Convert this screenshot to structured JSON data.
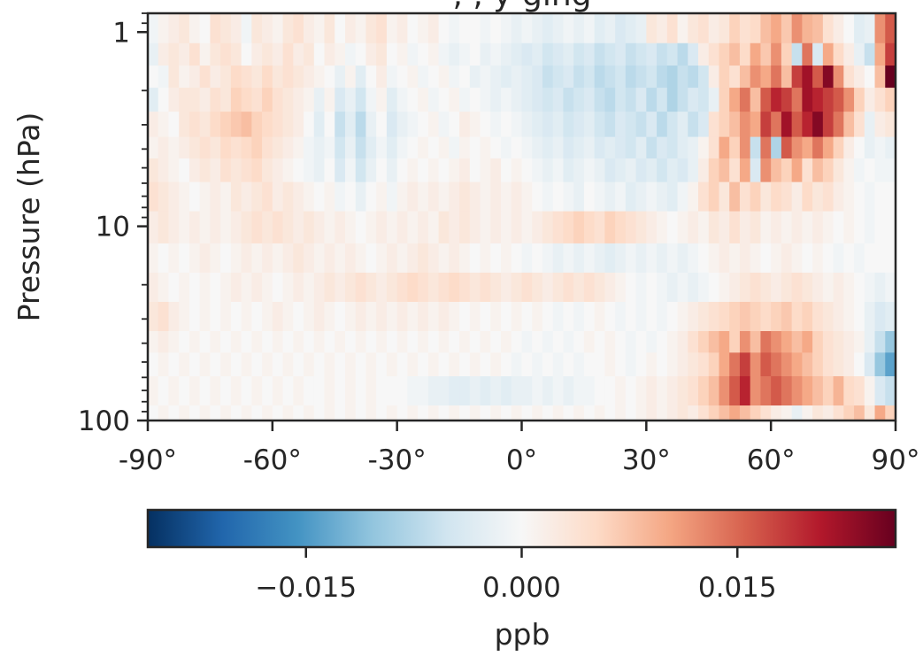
{
  "chart_data": {
    "type": "heatmap",
    "title": ", , y ging",
    "xlabel": "",
    "ylabel": "Pressure (hPa)",
    "xlim": [
      -90,
      90
    ],
    "ylim": [
      100,
      0.8
    ],
    "yscale": "log",
    "x_ticks": [
      -90,
      -60,
      -30,
      0,
      30,
      60,
      90
    ],
    "x_tick_labels": [
      "-90°",
      "-60°",
      "-30°",
      "0°",
      "30°",
      "60°",
      "90°"
    ],
    "y_ticks": [
      1,
      10,
      100
    ],
    "y_tick_labels": [
      "1",
      "10",
      "100"
    ],
    "colorbar": {
      "label": "ppb",
      "cmap": "RdBu_r",
      "vmin": -0.026,
      "vmax": 0.026,
      "ticks": [
        -0.015,
        0.0,
        0.015
      ],
      "tick_labels": [
        "−0.015",
        "0.000",
        "0.015"
      ]
    },
    "x": [
      -88.75,
      -86.25,
      -83.75,
      -81.25,
      -78.75,
      -76.25,
      -73.75,
      -71.25,
      -68.75,
      -66.25,
      -63.75,
      -61.25,
      -58.75,
      -56.25,
      -53.75,
      -51.25,
      -48.75,
      -46.25,
      -43.75,
      -41.25,
      -38.75,
      -36.25,
      -33.75,
      -31.25,
      -28.75,
      -26.25,
      -23.75,
      -21.25,
      -18.75,
      -16.25,
      -13.75,
      -11.25,
      -8.75,
      -6.25,
      -3.75,
      -1.25,
      1.25,
      3.75,
      6.25,
      8.75,
      11.25,
      13.75,
      16.25,
      18.75,
      21.25,
      23.75,
      26.25,
      28.75,
      31.25,
      33.75,
      36.25,
      38.75,
      41.25,
      43.75,
      46.25,
      48.75,
      51.25,
      53.75,
      56.25,
      58.75,
      61.25,
      63.75,
      66.25,
      68.75,
      71.25,
      73.75,
      76.25,
      78.75,
      81.25,
      83.75,
      86.25,
      88.75
    ],
    "y": [
      1,
      1.3,
      1.7,
      2.2,
      3,
      4,
      5,
      7,
      10,
      15,
      20,
      30,
      40,
      50,
      70,
      100
    ],
    "z": [
      [
        -0.001,
        0.001,
        0.002,
        0.003,
        0.001,
        0.0,
        0.004,
        0.003,
        0.002,
        -0.001,
        0.003,
        0.002,
        0.001,
        0.003,
        0.004,
        0.002,
        0.001,
        0.003,
        0.0,
        0.002,
        0.001,
        0.003,
        0.004,
        0.001,
        0.002,
        0.0,
        0.001,
        0.002,
        0.0,
        -0.001,
        0.0,
        0.0,
        -0.001,
        0.0,
        -0.001,
        -0.002,
        -0.001,
        -0.002,
        -0.003,
        -0.002,
        -0.001,
        -0.002,
        -0.001,
        -0.003,
        -0.002,
        -0.004,
        -0.003,
        -0.002,
        0.003,
        0.002,
        0.004,
        0.001,
        0.003,
        0.004,
        0.002,
        0.003,
        0.006,
        0.004,
        0.005,
        0.008,
        0.01,
        0.007,
        0.012,
        0.009,
        0.008,
        0.004,
        0.002,
        0.0,
        -0.003,
        -0.002,
        0.012,
        0.016
      ],
      [
        -0.002,
        0.002,
        0.003,
        0.002,
        0.004,
        0.001,
        0.003,
        0.004,
        0.003,
        0.0,
        0.002,
        0.003,
        0.002,
        0.004,
        0.002,
        0.003,
        0.0,
        0.002,
        0.001,
        -0.001,
        0.0,
        0.002,
        0.003,
        0.0,
        0.001,
        -0.001,
        0.0,
        0.001,
        -0.001,
        -0.002,
        -0.001,
        0.0,
        -0.002,
        -0.001,
        -0.002,
        -0.003,
        -0.004,
        -0.003,
        -0.005,
        -0.004,
        -0.003,
        -0.005,
        -0.004,
        -0.006,
        -0.005,
        -0.004,
        -0.006,
        -0.005,
        -0.004,
        -0.006,
        -0.005,
        -0.007,
        -0.004,
        0.002,
        0.004,
        0.006,
        0.008,
        0.005,
        0.01,
        0.007,
        0.012,
        0.006,
        -0.006,
        0.014,
        -0.004,
        0.01,
        0.005,
        0.002,
        -0.002,
        -0.006,
        0.01,
        0.018
      ],
      [
        0.0,
        -0.001,
        0.003,
        0.001,
        0.002,
        0.004,
        0.002,
        0.003,
        0.005,
        0.004,
        0.003,
        0.005,
        0.003,
        0.004,
        0.003,
        0.002,
        0.001,
        0.0,
        -0.002,
        0.001,
        -0.003,
        0.0,
        0.002,
        -0.001,
        0.0,
        0.001,
        -0.001,
        0.0,
        0.001,
        -0.001,
        0.0,
        -0.002,
        -0.001,
        -0.002,
        -0.003,
        -0.002,
        -0.003,
        -0.004,
        -0.006,
        -0.005,
        -0.004,
        -0.006,
        -0.005,
        -0.007,
        -0.006,
        -0.005,
        -0.007,
        -0.006,
        -0.005,
        -0.007,
        -0.008,
        -0.006,
        -0.007,
        -0.005,
        0.002,
        0.006,
        0.004,
        0.008,
        0.012,
        0.01,
        0.014,
        0.008,
        0.018,
        0.022,
        0.016,
        0.024,
        0.012,
        0.004,
        0.002,
        0.0,
        0.008,
        0.026
      ],
      [
        -0.003,
        0.0,
        0.002,
        0.003,
        0.003,
        0.002,
        0.004,
        0.003,
        0.006,
        0.005,
        0.004,
        0.006,
        0.004,
        0.003,
        0.002,
        0.001,
        -0.002,
        0.001,
        -0.004,
        -0.002,
        -0.005,
        -0.001,
        0.001,
        -0.003,
        -0.001,
        0.0,
        0.001,
        -0.001,
        0.0,
        0.001,
        -0.001,
        0.0,
        -0.001,
        -0.002,
        -0.001,
        -0.002,
        -0.003,
        -0.004,
        -0.005,
        -0.004,
        -0.006,
        -0.005,
        -0.004,
        -0.006,
        -0.007,
        -0.005,
        -0.006,
        -0.004,
        -0.007,
        -0.005,
        -0.008,
        -0.006,
        -0.004,
        -0.005,
        -0.002,
        0.006,
        0.01,
        0.014,
        0.008,
        0.016,
        0.02,
        0.018,
        0.014,
        0.022,
        0.02,
        0.018,
        0.016,
        0.012,
        0.006,
        0.002,
        0.004,
        0.006
      ],
      [
        0.002,
        0.001,
        0.0,
        0.003,
        0.004,
        0.003,
        0.005,
        0.006,
        0.007,
        0.008,
        0.006,
        0.005,
        0.004,
        0.003,
        0.002,
        0.0,
        -0.003,
        0.0,
        -0.006,
        -0.003,
        -0.007,
        -0.002,
        0.0,
        -0.004,
        -0.002,
        -0.001,
        0.0,
        0.001,
        -0.001,
        0.0,
        0.002,
        0.001,
        0.0,
        -0.001,
        0.0,
        -0.001,
        -0.002,
        -0.003,
        -0.004,
        -0.003,
        -0.005,
        -0.004,
        -0.003,
        -0.005,
        -0.006,
        -0.004,
        -0.005,
        -0.006,
        -0.004,
        -0.007,
        -0.005,
        -0.003,
        -0.006,
        -0.004,
        0.004,
        0.006,
        0.008,
        0.012,
        0.01,
        0.018,
        0.014,
        0.022,
        0.016,
        0.02,
        0.024,
        0.018,
        0.014,
        0.008,
        0.004,
        -0.002,
        0.002,
        0.003
      ],
      [
        0.001,
        0.002,
        0.001,
        0.002,
        0.003,
        0.004,
        0.003,
        0.005,
        0.004,
        0.005,
        0.006,
        0.004,
        0.003,
        0.002,
        0.001,
        -0.001,
        -0.002,
        -0.001,
        -0.005,
        -0.002,
        -0.006,
        -0.003,
        -0.001,
        -0.003,
        -0.001,
        0.0,
        0.001,
        0.0,
        0.001,
        -0.001,
        0.001,
        0.0,
        0.001,
        0.0,
        -0.001,
        0.0,
        -0.001,
        -0.002,
        -0.003,
        -0.002,
        -0.004,
        -0.003,
        -0.002,
        -0.004,
        -0.003,
        -0.004,
        -0.005,
        -0.003,
        -0.006,
        -0.004,
        -0.005,
        -0.003,
        -0.002,
        0.001,
        0.004,
        0.01,
        0.006,
        0.012,
        -0.006,
        0.014,
        -0.008,
        0.016,
        0.012,
        0.01,
        0.014,
        0.01,
        0.006,
        0.002,
        0.0,
        -0.002,
        -0.001,
        -0.002
      ],
      [
        0.003,
        0.002,
        0.001,
        0.0,
        0.002,
        0.003,
        0.002,
        0.004,
        0.003,
        0.004,
        0.005,
        0.003,
        0.002,
        0.001,
        0.0,
        -0.001,
        -0.002,
        0.0,
        -0.004,
        -0.001,
        -0.005,
        -0.002,
        0.0,
        -0.002,
        0.0,
        0.001,
        0.0,
        0.001,
        0.0,
        0.001,
        0.002,
        0.0,
        0.001,
        0.002,
        0.0,
        0.001,
        0.0,
        -0.001,
        -0.002,
        -0.001,
        -0.003,
        -0.002,
        -0.001,
        -0.002,
        -0.004,
        -0.003,
        -0.002,
        -0.004,
        -0.003,
        -0.005,
        -0.003,
        -0.004,
        -0.002,
        0.002,
        0.006,
        0.008,
        0.004,
        0.01,
        -0.004,
        0.012,
        0.008,
        0.006,
        0.01,
        0.004,
        0.008,
        0.006,
        0.003,
        0.001,
        -0.001,
        0.0,
        -0.001,
        -0.001
      ],
      [
        0.004,
        0.003,
        0.002,
        0.001,
        0.0,
        0.001,
        0.002,
        0.001,
        0.003,
        0.002,
        0.003,
        0.004,
        0.002,
        0.003,
        0.002,
        0.001,
        0.0,
        0.001,
        -0.001,
        0.0,
        -0.002,
        0.0,
        0.001,
        -0.001,
        0.001,
        0.002,
        0.001,
        0.002,
        0.001,
        0.002,
        0.003,
        0.002,
        0.001,
        0.002,
        0.001,
        0.002,
        0.001,
        0.0,
        -0.001,
        0.0,
        -0.001,
        -0.002,
        0.0,
        -0.001,
        -0.002,
        -0.001,
        -0.003,
        -0.002,
        -0.001,
        -0.002,
        -0.003,
        -0.001,
        0.001,
        0.004,
        0.006,
        0.003,
        0.008,
        0.004,
        0.006,
        0.003,
        0.005,
        0.004,
        0.002,
        0.005,
        0.003,
        0.004,
        0.002,
        0.001,
        0.0,
        -0.001,
        0.0,
        0.0
      ],
      [
        0.002,
        0.003,
        0.002,
        0.001,
        0.002,
        0.001,
        0.002,
        0.001,
        0.002,
        0.003,
        0.004,
        0.003,
        0.004,
        0.003,
        0.002,
        0.003,
        0.002,
        0.001,
        0.002,
        0.001,
        0.0,
        0.001,
        0.002,
        0.001,
        0.002,
        0.001,
        0.002,
        0.001,
        0.003,
        0.002,
        0.003,
        0.002,
        0.001,
        0.002,
        0.001,
        0.002,
        0.001,
        0.002,
        0.003,
        0.004,
        0.005,
        0.006,
        0.005,
        0.004,
        0.006,
        0.005,
        0.004,
        0.003,
        0.002,
        0.001,
        0.0,
        0.001,
        0.002,
        0.001,
        0.003,
        0.002,
        0.004,
        0.002,
        0.003,
        0.001,
        0.002,
        0.001,
        0.002,
        0.001,
        0.002,
        0.001,
        0.0,
        0.001,
        0.0,
        -0.001,
        0.0,
        0.0
      ],
      [
        0.001,
        0.0,
        0.001,
        0.0,
        0.001,
        0.002,
        0.001,
        0.0,
        0.001,
        0.002,
        0.001,
        0.002,
        0.001,
        0.002,
        0.003,
        0.002,
        0.001,
        0.002,
        0.001,
        0.002,
        0.001,
        0.0,
        0.001,
        0.002,
        0.001,
        0.002,
        0.003,
        0.002,
        0.001,
        0.002,
        0.001,
        0.0,
        0.001,
        0.0,
        0.001,
        0.0,
        -0.001,
        0.0,
        -0.001,
        -0.002,
        -0.001,
        -0.002,
        -0.001,
        -0.002,
        -0.003,
        -0.002,
        -0.001,
        -0.002,
        -0.001,
        -0.002,
        -0.001,
        -0.002,
        -0.001,
        0.0,
        0.001,
        0.002,
        0.001,
        0.002,
        0.001,
        0.0,
        0.001,
        0.002,
        0.001,
        0.0,
        0.001,
        0.0,
        -0.001,
        0.0,
        -0.001,
        0.0,
        0.0,
        0.0
      ],
      [
        0.002,
        0.001,
        0.0,
        0.001,
        0.0,
        0.001,
        0.0,
        0.001,
        0.002,
        0.001,
        0.002,
        0.001,
        0.0,
        0.001,
        0.002,
        0.001,
        0.002,
        0.003,
        0.002,
        0.003,
        0.004,
        0.003,
        0.002,
        0.003,
        0.004,
        0.005,
        0.004,
        0.003,
        0.004,
        0.005,
        0.004,
        0.003,
        0.004,
        0.003,
        0.002,
        0.003,
        0.004,
        0.003,
        0.002,
        0.003,
        0.004,
        0.003,
        0.004,
        0.003,
        0.002,
        0.001,
        0.0,
        -0.001,
        0.0,
        -0.001,
        -0.002,
        -0.001,
        -0.002,
        -0.001,
        0.0,
        0.001,
        0.002,
        0.003,
        0.004,
        0.003,
        0.002,
        0.003,
        0.004,
        0.003,
        0.002,
        0.001,
        0.002,
        0.001,
        0.0,
        -0.001,
        -0.002,
        -0.001
      ],
      [
        0.003,
        0.004,
        0.002,
        0.001,
        0.0,
        0.001,
        0.0,
        0.001,
        0.0,
        0.001,
        0.0,
        0.001,
        0.002,
        0.001,
        0.0,
        0.001,
        0.002,
        0.001,
        0.0,
        0.001,
        0.002,
        0.001,
        0.002,
        0.001,
        0.002,
        0.001,
        0.002,
        0.001,
        0.002,
        0.001,
        0.0,
        0.001,
        0.0,
        0.001,
        0.0,
        0.001,
        0.0,
        0.001,
        0.0,
        -0.001,
        0.0,
        -0.001,
        0.0,
        0.001,
        0.0,
        -0.001,
        0.0,
        -0.001,
        0.0,
        -0.001,
        0.0,
        0.001,
        0.002,
        0.003,
        0.004,
        0.005,
        0.006,
        0.007,
        0.006,
        0.005,
        0.006,
        0.007,
        0.005,
        0.006,
        0.004,
        0.003,
        0.002,
        0.001,
        0.0,
        -0.002,
        -0.004,
        -0.003
      ],
      [
        0.001,
        0.002,
        0.001,
        0.0,
        0.001,
        0.0,
        0.001,
        0.0,
        0.001,
        0.0,
        0.001,
        0.0,
        0.001,
        0.0,
        0.001,
        0.0,
        0.001,
        0.0,
        0.001,
        0.0,
        0.001,
        0.0,
        0.001,
        0.0,
        0.001,
        0.0,
        0.001,
        0.0,
        0.001,
        0.0,
        0.001,
        0.0,
        0.001,
        0.0,
        0.001,
        0.0,
        -0.001,
        0.0,
        -0.001,
        0.0,
        -0.001,
        0.0,
        0.001,
        0.0,
        0.001,
        0.0,
        -0.001,
        0.0,
        -0.001,
        0.0,
        0.001,
        0.002,
        0.004,
        0.006,
        0.008,
        0.01,
        0.006,
        0.012,
        0.008,
        0.014,
        0.012,
        0.01,
        0.008,
        0.01,
        0.006,
        0.004,
        0.003,
        0.002,
        0.001,
        -0.002,
        -0.006,
        -0.01
      ],
      [
        0.0,
        0.001,
        0.0,
        0.001,
        0.0,
        0.001,
        0.0,
        0.001,
        0.0,
        0.001,
        0.0,
        0.001,
        0.0,
        0.001,
        0.0,
        0.001,
        0.0,
        0.001,
        0.0,
        0.001,
        0.0,
        0.001,
        0.0,
        0.001,
        0.0,
        0.001,
        0.0,
        0.001,
        0.0,
        0.001,
        0.0,
        0.001,
        0.0,
        0.001,
        0.0,
        -0.001,
        0.0,
        -0.001,
        0.0,
        -0.001,
        0.0,
        -0.001,
        0.0,
        0.0,
        0.001,
        0.0,
        -0.001,
        0.0,
        0.001,
        0.0,
        0.001,
        0.002,
        0.003,
        0.004,
        0.006,
        0.01,
        0.014,
        0.018,
        0.012,
        0.016,
        0.014,
        0.012,
        0.01,
        0.008,
        0.006,
        0.004,
        0.003,
        0.002,
        0.0,
        -0.004,
        -0.01,
        -0.014
      ],
      [
        0.001,
        0.0,
        0.001,
        0.0,
        0.001,
        0.0,
        0.001,
        0.0,
        0.001,
        0.0,
        0.001,
        0.0,
        0.001,
        0.0,
        0.001,
        0.0,
        0.0,
        0.001,
        0.0,
        0.001,
        0.0,
        0.001,
        0.0,
        0.0,
        0.0,
        -0.001,
        -0.001,
        -0.002,
        -0.002,
        -0.003,
        -0.003,
        -0.002,
        -0.003,
        -0.002,
        -0.003,
        -0.002,
        -0.002,
        -0.001,
        -0.002,
        -0.001,
        -0.002,
        -0.001,
        -0.001,
        0.0,
        0.0,
        0.001,
        0.0,
        0.001,
        0.002,
        0.001,
        0.002,
        0.003,
        0.004,
        0.006,
        0.008,
        0.012,
        0.016,
        0.02,
        0.012,
        0.014,
        0.016,
        0.014,
        0.012,
        0.01,
        0.008,
        0.006,
        0.009,
        0.005,
        0.004,
        0.001,
        -0.004,
        -0.006
      ],
      [
        0.0,
        0.001,
        0.0,
        0.001,
        0.0,
        0.001,
        0.0,
        0.001,
        0.0,
        0.001,
        0.0,
        0.001,
        0.0,
        0.001,
        0.0,
        0.001,
        0.0,
        0.001,
        0.0,
        0.001,
        0.0,
        0.001,
        0.0,
        0.001,
        0.0,
        0.001,
        0.0,
        0.001,
        0.0,
        0.001,
        0.0,
        0.001,
        0.0,
        0.001,
        0.0,
        0.001,
        0.0,
        0.001,
        0.0,
        0.001,
        0.0,
        0.001,
        0.0,
        0.001,
        0.0,
        0.001,
        0.0,
        0.001,
        0.002,
        0.001,
        0.002,
        0.003,
        0.002,
        0.004,
        0.006,
        0.008,
        0.01,
        0.008,
        0.006,
        0.004,
        0.002,
        0.001,
        -0.002,
        0.001,
        0.003,
        0.002,
        0.004,
        0.006,
        0.008,
        0.003,
        0.01,
        0.006
      ]
    ]
  }
}
